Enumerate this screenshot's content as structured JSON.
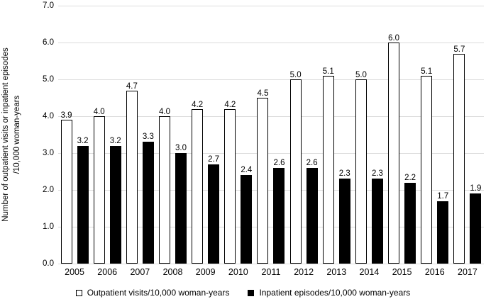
{
  "figure": {
    "background": "#ffffff",
    "y_axis_title_line1": "Number of outpatient visits or inpatient episodes",
    "y_axis_title_line2": "/10,000 woman-years"
  },
  "chart_data": {
    "type": "bar",
    "title": "",
    "xlabel": "",
    "ylabel": "Number of outpatient visits or inpatient episodes /10,000 woman-years",
    "categories": [
      "2005",
      "2006",
      "2007",
      "2008",
      "2009",
      "2010",
      "2011",
      "2012",
      "2013",
      "2014",
      "2015",
      "2016",
      "2017"
    ],
    "series": [
      {
        "key": "outpatient",
        "name": "Outpatient visits/10,000 woman-years",
        "marker": "open-square",
        "fill": "#ffffff",
        "border": "#000000",
        "values": [
          3.9,
          4.0,
          4.7,
          4.0,
          4.2,
          4.2,
          4.5,
          5.0,
          5.1,
          5.0,
          6.0,
          5.1,
          5.7
        ]
      },
      {
        "key": "inpatient",
        "name": "Inpatient episodes/10,000 woman-years",
        "marker": "filled-square",
        "fill": "#000000",
        "border": "#000000",
        "values": [
          3.2,
          3.2,
          3.3,
          3.0,
          2.7,
          2.4,
          2.6,
          2.6,
          2.3,
          2.3,
          2.2,
          1.7,
          1.9
        ]
      }
    ],
    "ylim": [
      0,
      7
    ],
    "ytick_labels": [
      "0.0",
      "1.0",
      "2.0",
      "3.0",
      "4.0",
      "5.0",
      "6.0",
      "7.0"
    ],
    "grid": true,
    "gridline_color": "#dcdcdc",
    "data_labels": true,
    "data_label_decimals": 1,
    "legend_position": "bottom",
    "text_color": "#000000"
  }
}
